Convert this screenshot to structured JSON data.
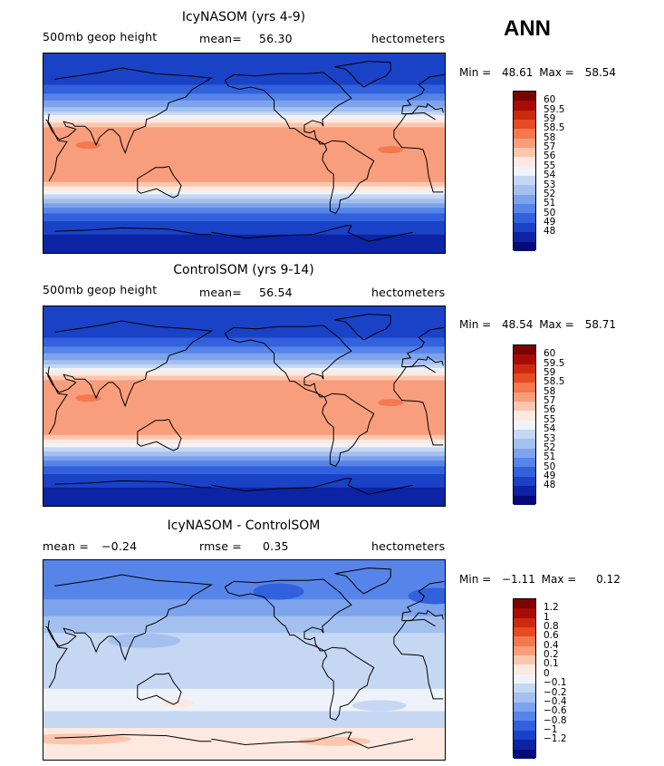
{
  "season": "ANN",
  "chart_data": [
    {
      "type": "heatmap",
      "title": "IcyNASOM (yrs 4-9)",
      "variable": "500mb geop height",
      "stat_left": "mean=",
      "stat_left_value": "56.30",
      "units": "hectometers",
      "min_label": "Min =",
      "min": "48.61",
      "max_label": "Max =",
      "max": "58.54",
      "field": "model",
      "colorbar": {
        "labels": [
          "60",
          "59.5",
          "59",
          "58.5",
          "58",
          "57",
          "56",
          "55",
          "54",
          "53",
          "52",
          "51",
          "50",
          "49",
          "48"
        ],
        "colors": [
          "#7a0403",
          "#a80c06",
          "#cc2a10",
          "#e64b22",
          "#f4794e",
          "#f89e7d",
          "#fbc6ae",
          "#fde9df",
          "#eef3fb",
          "#c5d7f3",
          "#a3c0ee",
          "#7ca3ec",
          "#5784e8",
          "#3161dd",
          "#1a42c6",
          "#0c23a3",
          "#040a78"
        ]
      }
    },
    {
      "type": "heatmap",
      "title": "ControlSOM (yrs 9-14)",
      "variable": "500mb geop height",
      "stat_left": "mean=",
      "stat_left_value": "56.54",
      "units": "hectometers",
      "min_label": "Min =",
      "min": "48.54",
      "max_label": "Max =",
      "max": "58.71",
      "field": "model",
      "colorbar": {
        "labels": [
          "60",
          "59.5",
          "59",
          "58.5",
          "58",
          "57",
          "56",
          "55",
          "54",
          "53",
          "52",
          "51",
          "50",
          "49",
          "48"
        ],
        "colors": [
          "#7a0403",
          "#a80c06",
          "#cc2a10",
          "#e64b22",
          "#f4794e",
          "#f89e7d",
          "#fbc6ae",
          "#fde9df",
          "#eef3fb",
          "#c5d7f3",
          "#a3c0ee",
          "#7ca3ec",
          "#5784e8",
          "#3161dd",
          "#1a42c6",
          "#0c23a3",
          "#040a78"
        ]
      }
    },
    {
      "type": "heatmap",
      "title": "IcyNASOM - ControlSOM",
      "stat_left": "mean =",
      "stat_left_value": "−0.24",
      "stat_mid": "rmse =",
      "stat_mid_value": "0.35",
      "units": "hectometers",
      "min_label": "Min =",
      "min": "−1.11",
      "max_label": "Max =",
      "max": "0.12",
      "field": "diff",
      "colorbar": {
        "labels": [
          "1.2",
          "1",
          "0.8",
          "0.6",
          "0.4",
          "0.2",
          "0.1",
          "0",
          "−0.1",
          "−0.2",
          "−0.4",
          "−0.6",
          "−0.8",
          "−1",
          "−1.2"
        ],
        "colors": [
          "#7a0403",
          "#a80c06",
          "#cc2a10",
          "#e64b22",
          "#f4794e",
          "#f89e7d",
          "#fbc6ae",
          "#fde9df",
          "#eef3fb",
          "#c5d7f3",
          "#a3c0ee",
          "#7ca3ec",
          "#5784e8",
          "#3161dd",
          "#1a42c6",
          "#0c23a3",
          "#040a78"
        ]
      }
    }
  ]
}
